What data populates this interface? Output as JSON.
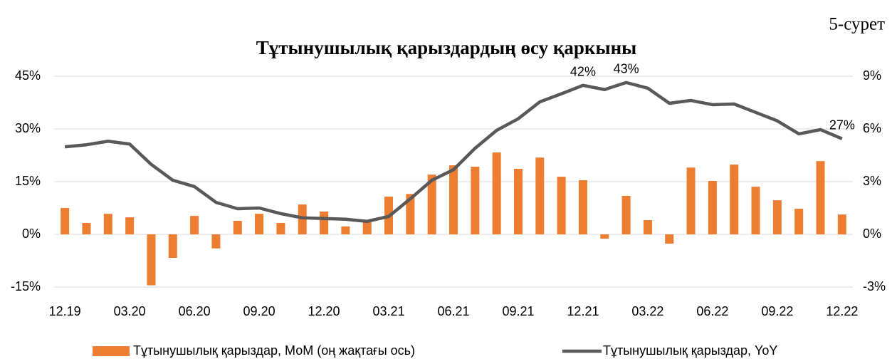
{
  "chart_data": {
    "type": "combo",
    "title": "Тұтынушылық қарыздардың өсу қаркыны",
    "annotation": "5-сурет",
    "categories": [
      "12.19",
      null,
      null,
      "03.20",
      null,
      null,
      "06.20",
      null,
      null,
      "09.20",
      null,
      null,
      "12.20",
      null,
      null,
      "03.21",
      null,
      null,
      "06.21",
      null,
      null,
      "09.21",
      null,
      null,
      "12.21",
      null,
      null,
      "03.22",
      null,
      null,
      "06.22",
      null,
      null,
      "09.22",
      null,
      null,
      "12.22"
    ],
    "ylim": [
      -15,
      45
    ],
    "yticks": [
      {
        "value": -15,
        "label": "-15%"
      },
      {
        "value": 0,
        "label": "0%"
      },
      {
        "value": 15,
        "label": "15%"
      },
      {
        "value": 30,
        "label": "30%"
      },
      {
        "value": 45,
        "label": "45%"
      }
    ],
    "y2lim": [
      -3,
      9
    ],
    "y2ticks": [
      {
        "value": -3,
        "label": "-3%"
      },
      {
        "value": 0,
        "label": "0%"
      },
      {
        "value": 3,
        "label": "3%"
      },
      {
        "value": 6,
        "label": "6%"
      },
      {
        "value": 9,
        "label": "9%"
      }
    ],
    "grid": true,
    "legend": "bottom",
    "series": [
      {
        "name": "Тұтынушылық қарыздар, МоМ (оң жақтағы ось)",
        "type": "bar",
        "axis": "y2",
        "color": "#ed7d31",
        "values": [
          1.5,
          0.65,
          1.17,
          0.97,
          -2.9,
          -1.34,
          1.05,
          -0.8,
          0.77,
          1.17,
          0.65,
          1.7,
          1.3,
          0.45,
          0.7,
          2.15,
          2.3,
          3.4,
          3.93,
          3.85,
          4.66,
          3.73,
          4.37,
          3.28,
          3.08,
          -0.25,
          2.19,
          0.81,
          -0.53,
          3.8,
          3.04,
          3.97,
          2.71,
          1.94,
          1.46,
          4.17,
          1.13
        ]
      },
      {
        "name": "Тұтынушылық қарыздар, YoY",
        "type": "line",
        "color": "#595959",
        "values": [
          24.9,
          25.5,
          26.5,
          25.7,
          19.9,
          15.4,
          13.6,
          9.1,
          7.3,
          7.5,
          5.9,
          4.7,
          4.5,
          4.3,
          3.7,
          5.1,
          10.1,
          15.4,
          18.4,
          24.5,
          29.6,
          32.9,
          37.7,
          40,
          42.4,
          41.2,
          43.2,
          41.6,
          37.3,
          38.1,
          36.9,
          37.1,
          34.7,
          32.3,
          28.6,
          29.8,
          27.2
        ],
        "value_labels": [
          null,
          null,
          null,
          null,
          null,
          null,
          null,
          null,
          null,
          null,
          null,
          null,
          null,
          null,
          null,
          null,
          null,
          null,
          null,
          null,
          null,
          null,
          null,
          null,
          "42%",
          null,
          "43%",
          null,
          null,
          null,
          null,
          null,
          null,
          null,
          null,
          null,
          "27%"
        ]
      }
    ]
  }
}
